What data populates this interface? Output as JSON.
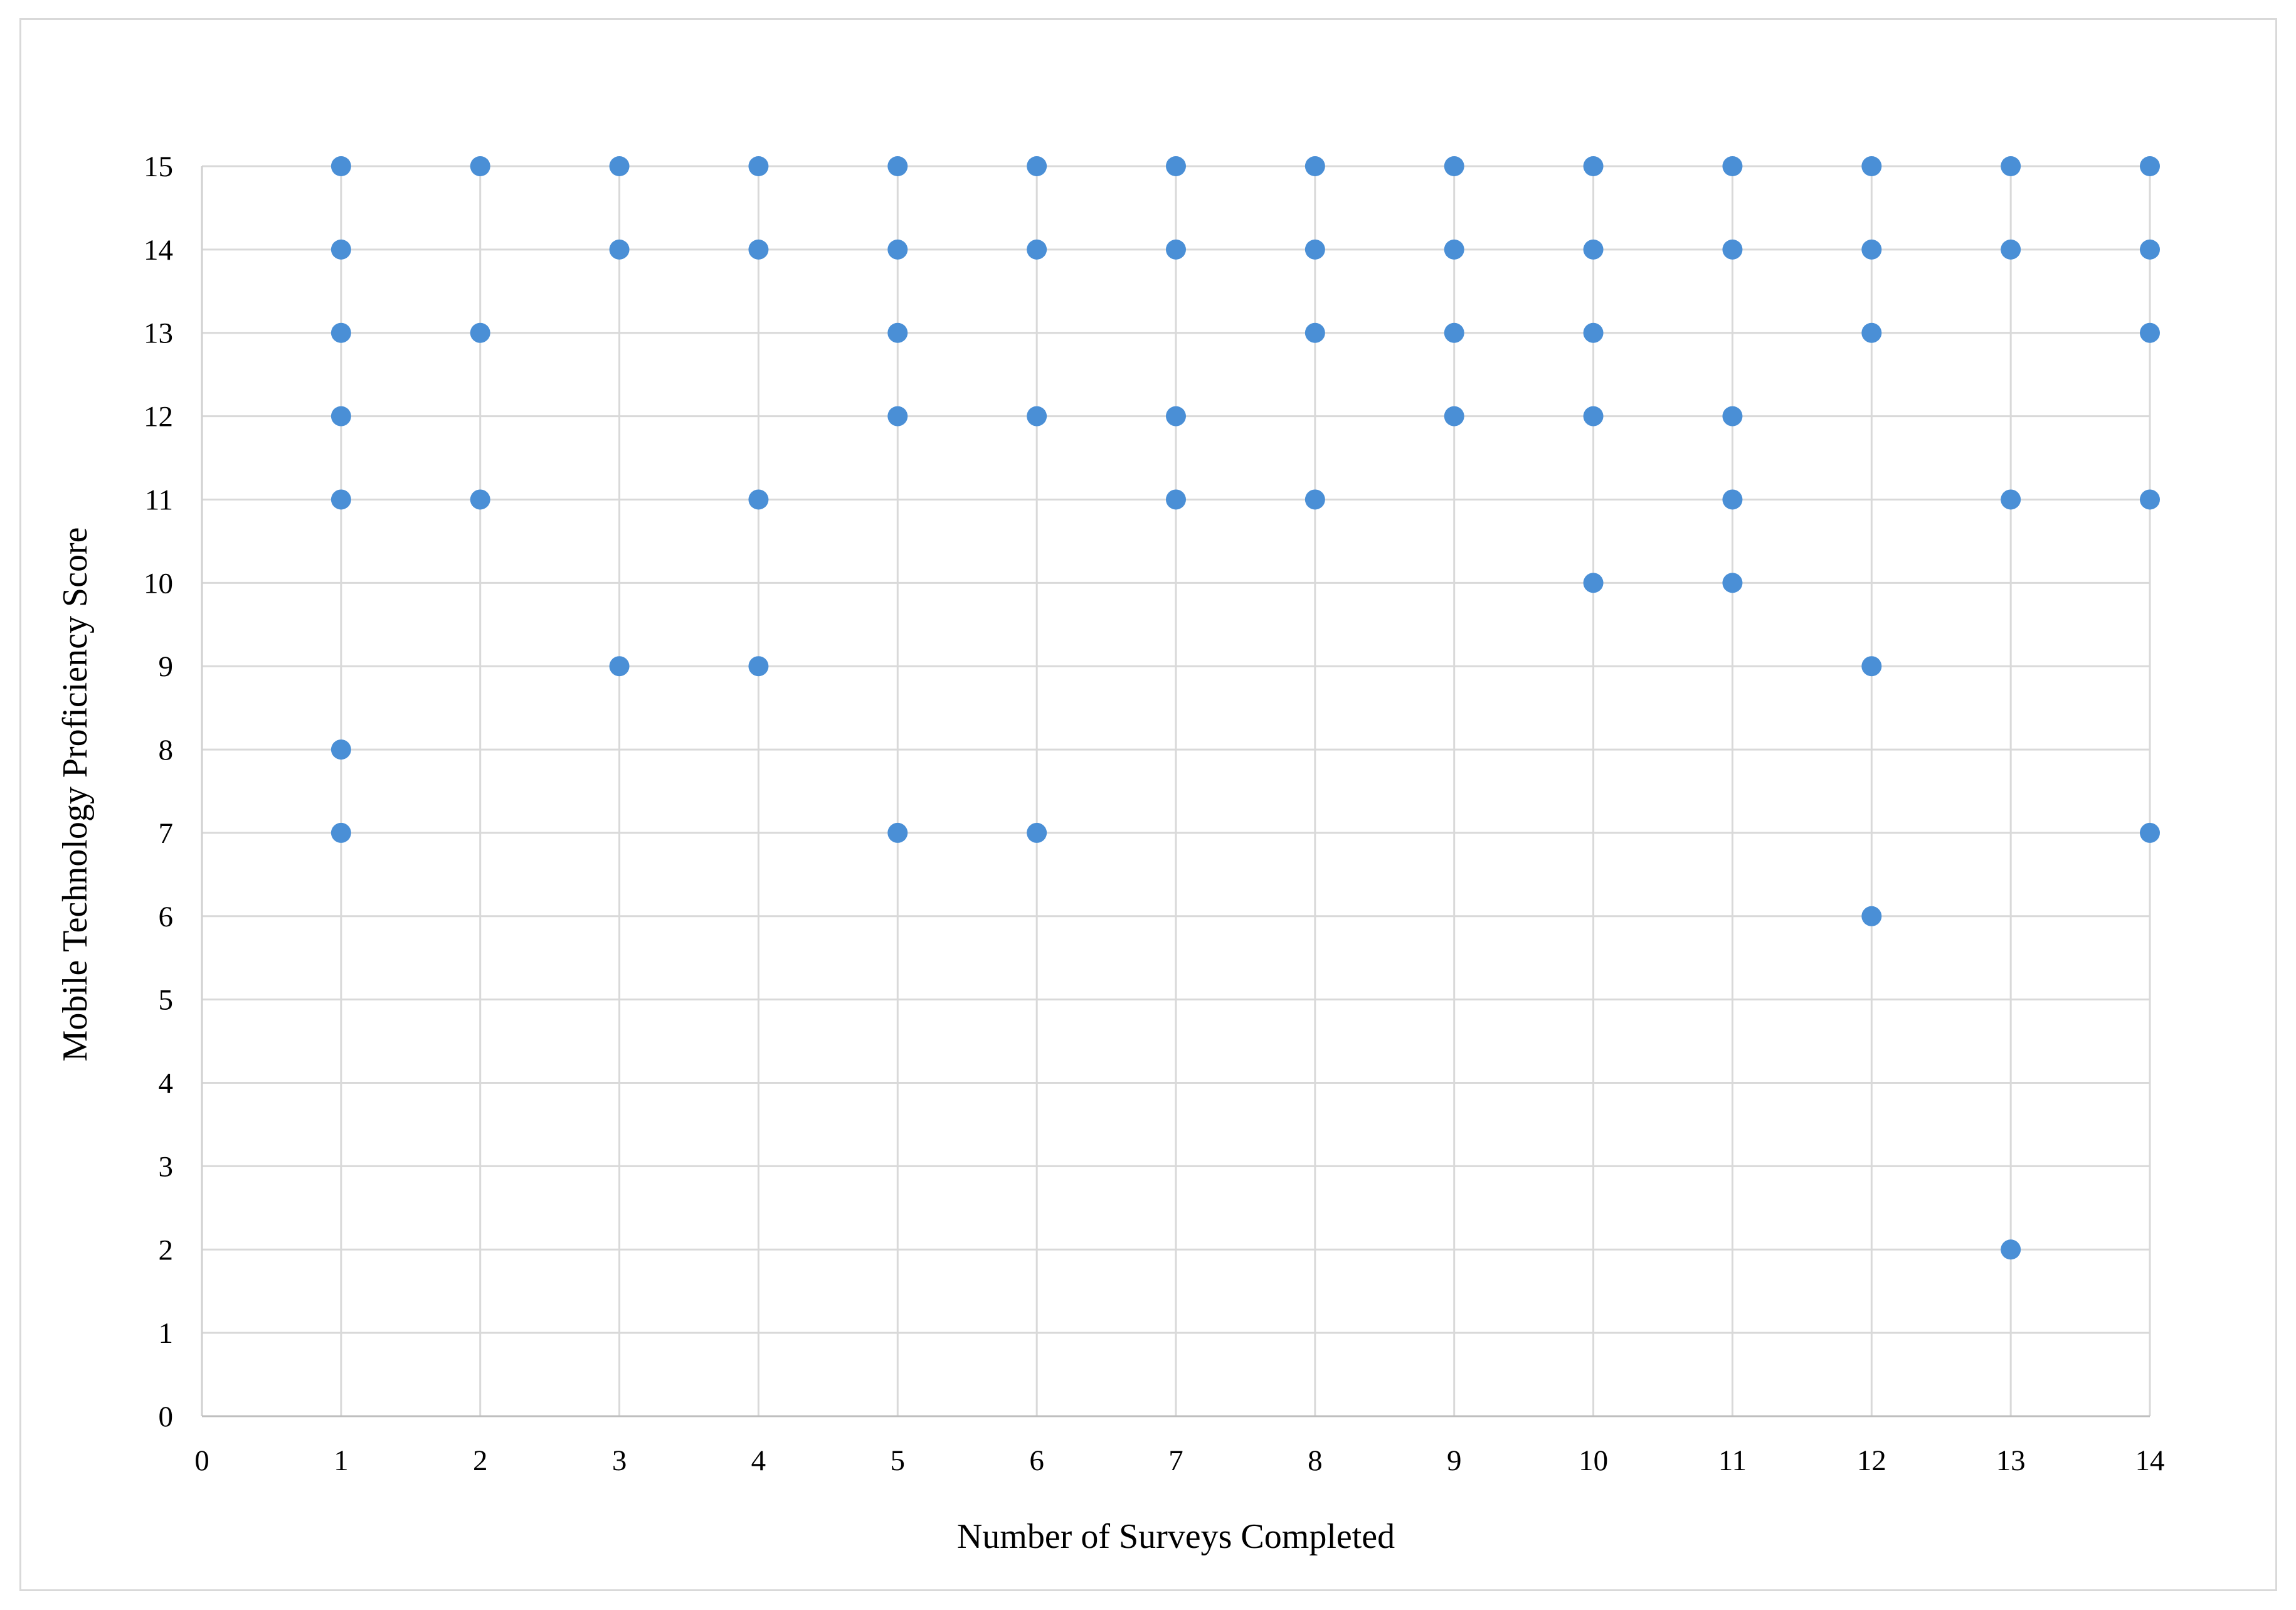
{
  "chart_data": {
    "type": "scatter",
    "title": "",
    "xlabel": "Number of Surveys Completed",
    "ylabel": "Mobile Technology Proficiency  Score",
    "xlim": [
      0,
      14
    ],
    "ylim": [
      0,
      15
    ],
    "xticks": [
      "0",
      "1",
      "2",
      "3",
      "4",
      "5",
      "6",
      "7",
      "8",
      "9",
      "10",
      "11",
      "12",
      "13",
      "14"
    ],
    "yticks": [
      "0",
      "1",
      "2",
      "3",
      "4",
      "5",
      "6",
      "7",
      "8",
      "9",
      "10",
      "11",
      "12",
      "13",
      "14",
      "15"
    ],
    "grid": "on",
    "legend": "none",
    "marker_color": "#4a8fd6",
    "grid_color": "#d9d9d9",
    "series": [
      {
        "points": [
          [
            1,
            15
          ],
          [
            1,
            14
          ],
          [
            1,
            13
          ],
          [
            1,
            12
          ],
          [
            1,
            11
          ],
          [
            1,
            8
          ],
          [
            1,
            7
          ],
          [
            2,
            15
          ],
          [
            2,
            13
          ],
          [
            2,
            11
          ],
          [
            3,
            15
          ],
          [
            3,
            14
          ],
          [
            3,
            9
          ],
          [
            4,
            15
          ],
          [
            4,
            14
          ],
          [
            4,
            11
          ],
          [
            4,
            9
          ],
          [
            5,
            15
          ],
          [
            5,
            14
          ],
          [
            5,
            13
          ],
          [
            5,
            12
          ],
          [
            5,
            7
          ],
          [
            6,
            15
          ],
          [
            6,
            14
          ],
          [
            6,
            12
          ],
          [
            6,
            7
          ],
          [
            7,
            15
          ],
          [
            7,
            14
          ],
          [
            7,
            12
          ],
          [
            7,
            11
          ],
          [
            8,
            15
          ],
          [
            8,
            14
          ],
          [
            8,
            13
          ],
          [
            8,
            11
          ],
          [
            9,
            15
          ],
          [
            9,
            14
          ],
          [
            9,
            13
          ],
          [
            9,
            12
          ],
          [
            10,
            15
          ],
          [
            10,
            14
          ],
          [
            10,
            13
          ],
          [
            10,
            12
          ],
          [
            10,
            10
          ],
          [
            11,
            15
          ],
          [
            11,
            14
          ],
          [
            11,
            12
          ],
          [
            11,
            11
          ],
          [
            11,
            10
          ],
          [
            12,
            15
          ],
          [
            12,
            14
          ],
          [
            12,
            13
          ],
          [
            12,
            9
          ],
          [
            12,
            6
          ],
          [
            13,
            15
          ],
          [
            13,
            14
          ],
          [
            13,
            11
          ],
          [
            13,
            2
          ],
          [
            14,
            15
          ],
          [
            14,
            14
          ],
          [
            14,
            13
          ],
          [
            14,
            11
          ],
          [
            14,
            7
          ]
        ]
      }
    ]
  }
}
